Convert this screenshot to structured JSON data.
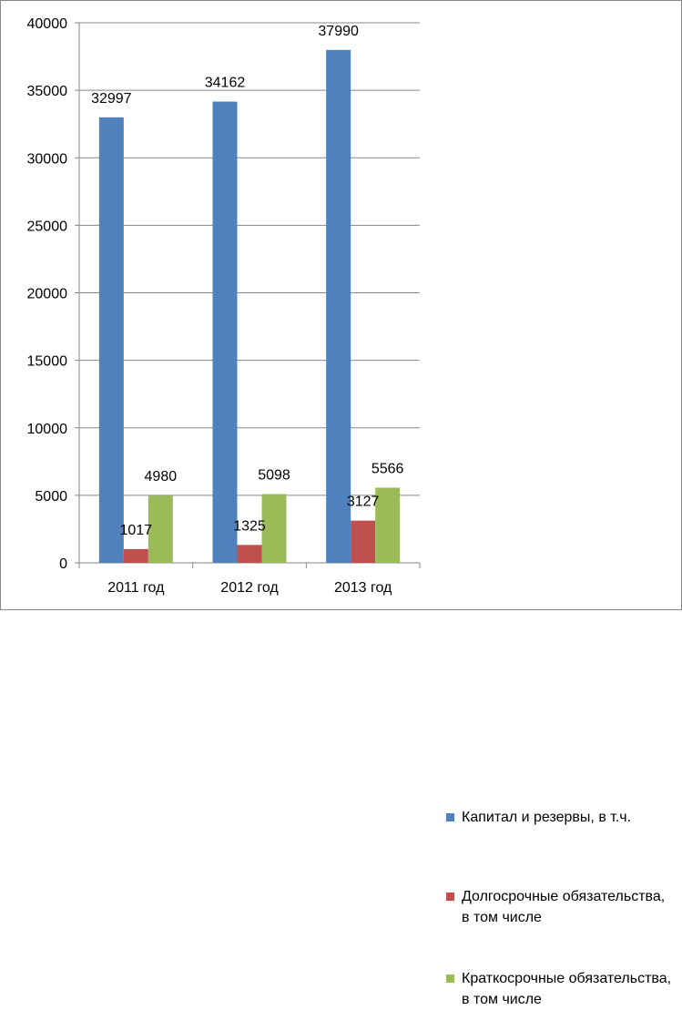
{
  "chart_data": {
    "type": "bar",
    "categories": [
      "2011 год",
      "2012 год",
      "2013 год"
    ],
    "series": [
      {
        "name": "Капитал и резервы, в т.ч.",
        "color": "#4F81BD",
        "values": [
          32997,
          34162,
          37990
        ]
      },
      {
        "name": "Долгосрочные обязательства, в том числе",
        "color": "#C0504D",
        "values": [
          1017,
          1325,
          3127
        ]
      },
      {
        "name": "Краткосрочные обязательства, в том числе",
        "color": "#9BBB59",
        "values": [
          4980,
          5098,
          5566
        ]
      }
    ],
    "yticks": [
      "0",
      "5000",
      "10000",
      "15000",
      "20000",
      "25000",
      "30000",
      "35000",
      "40000"
    ],
    "ylim": [
      0,
      40000
    ],
    "grid": true,
    "legend_position": "right"
  }
}
